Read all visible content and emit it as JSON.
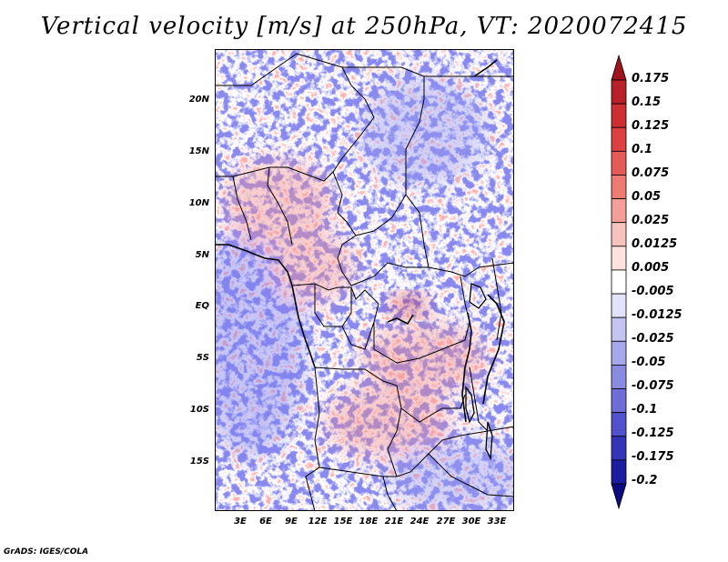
{
  "title": "Vertical velocity [m/s] at 250hPa, VT: 2020072415",
  "credit": "GrADS: IGES/COLA",
  "map": {
    "lon_range": [
      0,
      35
    ],
    "lat_range": [
      -20,
      25
    ],
    "lat_ticks": [
      "20N",
      "15N",
      "10N",
      "5N",
      "EQ",
      "5S",
      "10S",
      "15S"
    ],
    "lon_ticks": [
      "3E",
      "6E",
      "9E",
      "12E",
      "15E",
      "18E",
      "21E",
      "24E",
      "27E",
      "30E",
      "33E"
    ]
  },
  "colorbar": {
    "labels": [
      "0.175",
      "0.15",
      "0.125",
      "0.1",
      "0.075",
      "0.05",
      "0.025",
      "0.0125",
      "0.005",
      "-0.005",
      "-0.0125",
      "-0.025",
      "-0.05",
      "-0.075",
      "-0.1",
      "-0.125",
      "-0.175",
      "-0.2"
    ],
    "colors": [
      "#a0141e",
      "#b82028",
      "#cc2e32",
      "#dc4040",
      "#e65a58",
      "#ee7a74",
      "#f49e98",
      "#f8c2bc",
      "#fde2df",
      "#ffffff",
      "#e2e2fa",
      "#c4c4f2",
      "#a6a6ea",
      "#8a8ae0",
      "#6e6ed6",
      "#5252cc",
      "#3434b6",
      "#1c1c9e",
      "#0c0c82"
    ]
  }
}
